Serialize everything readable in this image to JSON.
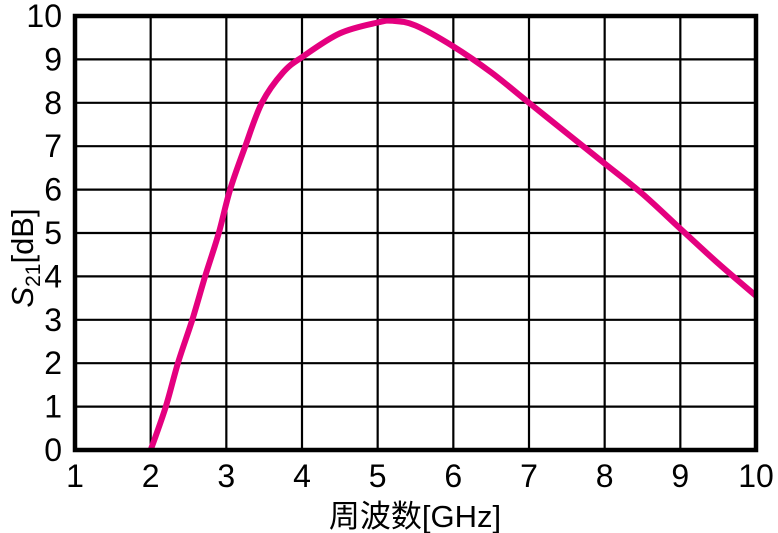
{
  "chart_data": {
    "type": "line",
    "title": "",
    "xlabel": "周波数[GHz]",
    "ylabel": "S21[dB]",
    "ylabel_parts": {
      "symbol": "S",
      "subscript": "21",
      "unit": "[dB]"
    },
    "xlim": [
      1,
      10
    ],
    "ylim": [
      0,
      10
    ],
    "xticks": [
      "1",
      "2",
      "3",
      "4",
      "5",
      "6",
      "7",
      "8",
      "9",
      "10"
    ],
    "yticks": [
      "0",
      "1",
      "2",
      "3",
      "4",
      "5",
      "6",
      "7",
      "8",
      "9",
      "10"
    ],
    "grid": "on",
    "legend_position": "none",
    "series": [
      {
        "name": "S21",
        "color": "#e4007f",
        "points": [
          [
            2.0,
            0.0
          ],
          [
            2.2,
            1.0
          ],
          [
            2.36,
            2.0
          ],
          [
            2.55,
            3.0
          ],
          [
            2.72,
            4.0
          ],
          [
            2.9,
            5.0
          ],
          [
            3.05,
            6.0
          ],
          [
            3.25,
            7.0
          ],
          [
            3.47,
            8.0
          ],
          [
            3.75,
            8.7
          ],
          [
            4.0,
            9.05
          ],
          [
            4.5,
            9.6
          ],
          [
            5.0,
            9.85
          ],
          [
            5.2,
            9.89
          ],
          [
            5.5,
            9.78
          ],
          [
            6.0,
            9.3
          ],
          [
            6.5,
            8.7
          ],
          [
            7.0,
            8.0
          ],
          [
            7.5,
            7.3
          ],
          [
            8.0,
            6.6
          ],
          [
            8.5,
            5.9
          ],
          [
            9.0,
            5.1
          ],
          [
            9.5,
            4.3
          ],
          [
            10.0,
            3.55
          ]
        ]
      }
    ],
    "colors": {
      "curve": "#e4007f",
      "grid": "#000000",
      "frame": "#000000",
      "background": "#ffffff",
      "text": "#000000"
    }
  }
}
